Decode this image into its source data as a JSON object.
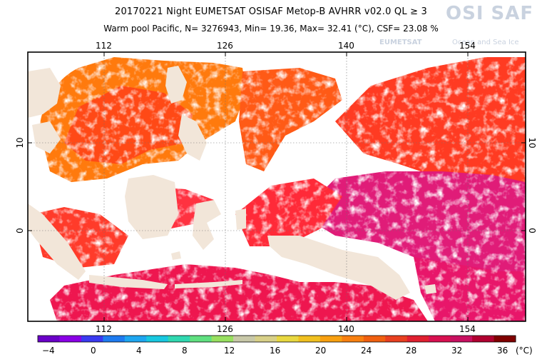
{
  "header": {
    "line1": "20170221 Night  EUMETSAT OSISAF   Metop-B AVHRR v02.0 QL ≥ 3",
    "line2": "Warm pool Pacific, N= 3276943, Min= 19.36, Max= 32.41 (°C), CSF= 23.08 %"
  },
  "logo": {
    "name": "OSI SAF",
    "sub1": "EUMETSAT",
    "sub2": "Ocean and Sea Ice"
  },
  "axes": {
    "lon_ticks": [
      "112",
      "126",
      "140",
      "154"
    ],
    "lat_ticks": [
      "10",
      "0"
    ]
  },
  "colorbar": {
    "labels": [
      "−4",
      "0",
      "4",
      "8",
      "12",
      "16",
      "20",
      "24",
      "28",
      "32",
      "36"
    ],
    "unit": "(°C)",
    "colors": [
      "#6a00c8",
      "#8a00e6",
      "#3a3af0",
      "#1e7bf0",
      "#1ea6f0",
      "#18c8e0",
      "#30d8b0",
      "#60e080",
      "#98e060",
      "#c8c8a8",
      "#d8d088",
      "#e8d840",
      "#f0c020",
      "#f8a010",
      "#f88010",
      "#f06010",
      "#e84020",
      "#e02030",
      "#d81050",
      "#c81060",
      "#b00030",
      "#800000"
    ]
  },
  "map": {
    "land_color": "#f2e6d9",
    "data_colors": {
      "orange": "#ff7a10",
      "red_orange": "#ff4a18",
      "red": "#ff1e30",
      "crimson": "#ee1550",
      "magenta": "#e01a78"
    }
  }
}
